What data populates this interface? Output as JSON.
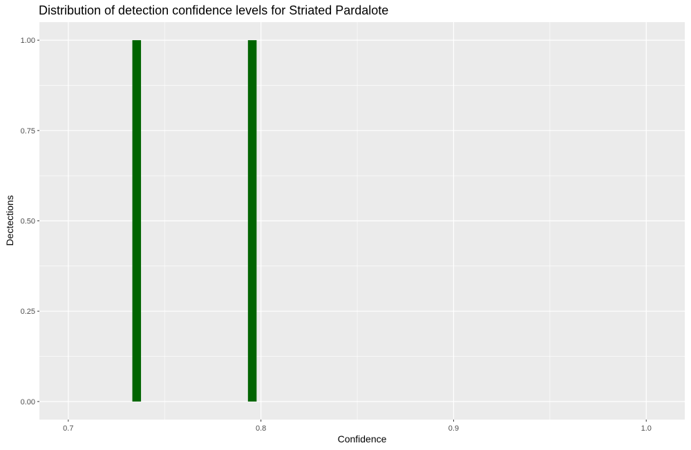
{
  "chart_data": {
    "type": "bar",
    "title": "Distribution of detection confidence levels for Striated Pardalote",
    "xlabel": "Confidence",
    "ylabel": "Dectections",
    "xlim": [
      0.685,
      1.02
    ],
    "ylim": [
      -0.05,
      1.05
    ],
    "x_ticks": [
      0.7,
      0.8,
      0.9,
      1.0
    ],
    "x_tick_labels": [
      "0.7",
      "0.8",
      "0.9",
      "1.0"
    ],
    "x_minor_ticks": [
      0.75,
      0.85,
      0.95
    ],
    "y_ticks": [
      0,
      0.25,
      0.5,
      0.75,
      1.0
    ],
    "y_tick_labels": [
      "0.00",
      "0.25",
      "0.50",
      "0.75",
      "1.00"
    ],
    "bin_width": 0.0045,
    "bars": [
      {
        "x": 0.7355,
        "value": 1
      },
      {
        "x": 0.7955,
        "value": 1
      }
    ],
    "grid": true,
    "bar_color": "#006400",
    "panel_color": "#EBEBEB",
    "grid_color": "#FFFFFF"
  }
}
